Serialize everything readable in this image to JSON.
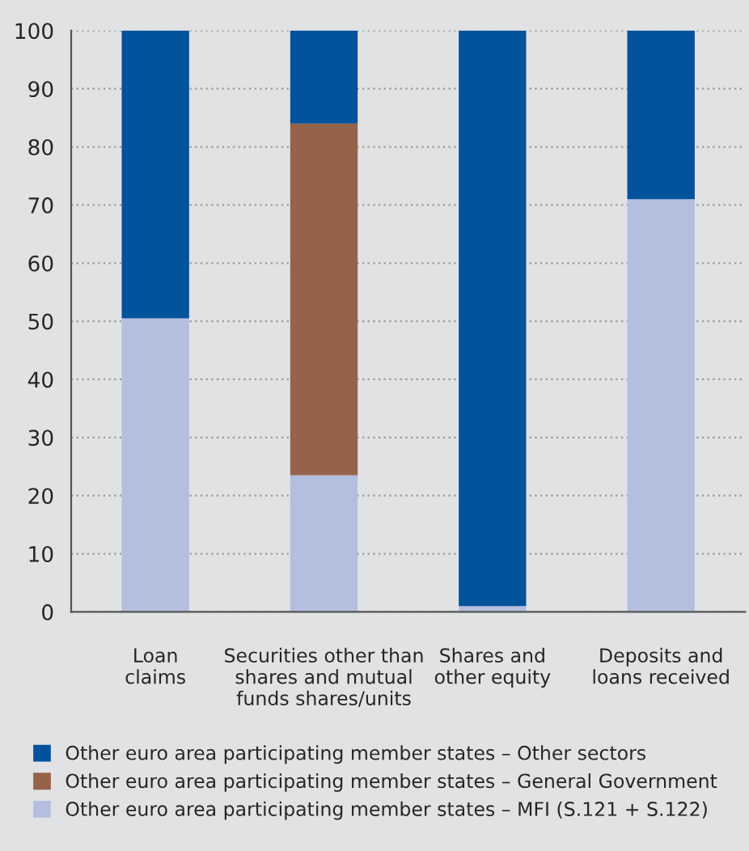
{
  "chart_data": {
    "type": "bar",
    "stacked": true,
    "categories": [
      "Loan\nclaims",
      "Securities other than\nshares and mutual\nfunds shares/units",
      "Shares and\nother equity",
      "Deposits and\nloans received"
    ],
    "series": [
      {
        "name": "Other euro area participating member states – MFI (S.121 + S.122)",
        "color": "#b4bedf",
        "values": [
          50.5,
          23.5,
          1,
          71
        ]
      },
      {
        "name": "Other euro area participating member states – General Government",
        "color": "#95634a",
        "values": [
          0,
          60.5,
          0,
          0
        ]
      },
      {
        "name": "Other euro area participating member states – Other sectors",
        "color": "#02529c",
        "values": [
          49.5,
          16,
          99,
          29
        ]
      }
    ],
    "ylim": [
      0,
      100
    ],
    "yticks": [
      0,
      10,
      20,
      30,
      40,
      50,
      60,
      70,
      80,
      90,
      100
    ],
    "grid": "y",
    "legend": "bottom"
  }
}
